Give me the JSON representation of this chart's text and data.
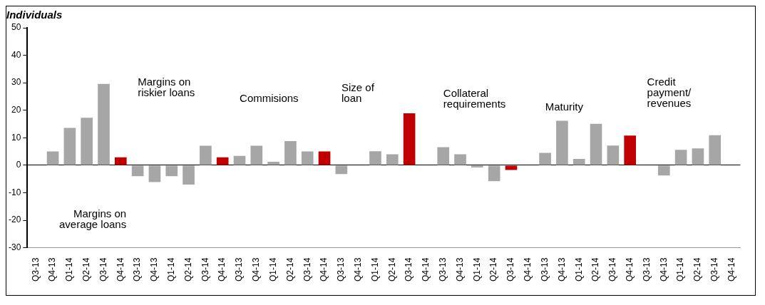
{
  "chart_data": {
    "type": "bar",
    "title": "Individuals",
    "categories": [
      "Q3-13",
      "Q4-13",
      "Q1-14",
      "Q2-14",
      "Q3-14",
      "Q4-14",
      "Q3-13",
      "Q4-13",
      "Q1-14",
      "Q2-14",
      "Q3-14",
      "Q4-14",
      "Q3-13",
      "Q4-13",
      "Q1-14",
      "Q2-14",
      "Q3-14",
      "Q4-14",
      "Q3-13",
      "Q4-13",
      "Q1-14",
      "Q2-14",
      "Q3-14",
      "Q4-14",
      "Q3-13",
      "Q4-13",
      "Q1-14",
      "Q2-14",
      "Q3-14",
      "Q4-14",
      "Q3-13",
      "Q4-13",
      "Q1-14",
      "Q2-14",
      "Q3-14",
      "Q4-14",
      "Q3-13",
      "Q4-13",
      "Q1-14",
      "Q2-14",
      "Q3-14",
      "Q4-14"
    ],
    "values": [
      null,
      5,
      13.6,
      17.3,
      29.6,
      2.9,
      -4,
      -6.1,
      -4,
      -7,
      7.1,
      2.9,
      3.4,
      7.1,
      1.3,
      8.8,
      5,
      5,
      -3.2,
      null,
      5.1,
      4,
      18.9,
      null,
      6.6,
      4,
      -0.8,
      -5.8,
      -1.7,
      null,
      4.5,
      16.2,
      2.3,
      15.1,
      7.2,
      10.8,
      null,
      -3.7,
      5.6,
      6.1,
      10.9,
      null
    ],
    "colors": [
      "#a6a6a6",
      "#a6a6a6",
      "#a6a6a6",
      "#a6a6a6",
      "#a6a6a6",
      "#c00000",
      "#a6a6a6",
      "#a6a6a6",
      "#a6a6a6",
      "#a6a6a6",
      "#a6a6a6",
      "#c00000",
      "#a6a6a6",
      "#a6a6a6",
      "#a6a6a6",
      "#a6a6a6",
      "#a6a6a6",
      "#c00000",
      "#a6a6a6",
      "#a6a6a6",
      "#a6a6a6",
      "#a6a6a6",
      "#c00000",
      "#c00000",
      "#a6a6a6",
      "#a6a6a6",
      "#a6a6a6",
      "#a6a6a6",
      "#c00000",
      "#c00000",
      "#a6a6a6",
      "#a6a6a6",
      "#a6a6a6",
      "#a6a6a6",
      "#a6a6a6",
      "#c00000",
      "#a6a6a6",
      "#a6a6a6",
      "#a6a6a6",
      "#a6a6a6",
      "#a6a6a6",
      "#a6a6a6"
    ],
    "ylim": [
      -30,
      50
    ],
    "yticks": [
      -30,
      -20,
      -10,
      0,
      10,
      20,
      30,
      40,
      50
    ],
    "annotations": [
      "Margins on\naverage loans",
      "Margins on\nriskier loans",
      "Commisions",
      "Size of\nloan",
      "Collateral\nrequirements",
      "Maturity",
      "Credit\npayment/\nrevenues"
    ]
  }
}
